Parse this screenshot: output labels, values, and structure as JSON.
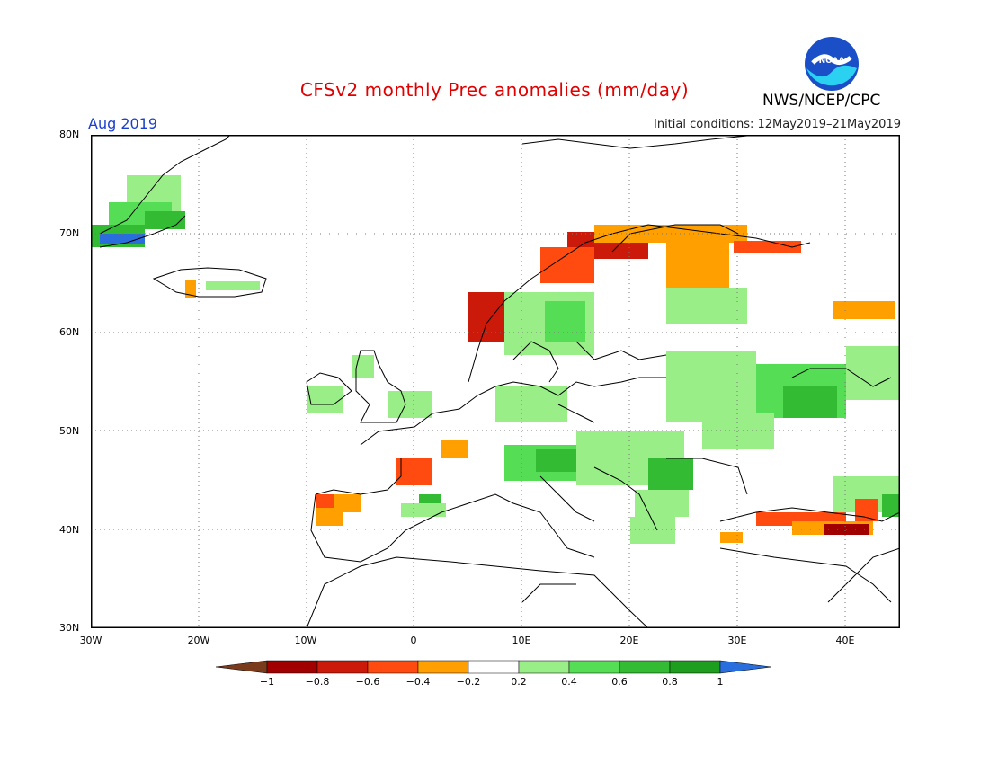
{
  "header": {
    "title": "CFSv2 monthly Prec anomalies (mm/day)",
    "month": "Aug 2019",
    "initial_conditions": "Initial conditions: 12May2019–21May2019",
    "agency": "NWS/NCEP/CPC",
    "logo_text": "NOAA"
  },
  "axes": {
    "lat_labels": [
      "80N",
      "70N",
      "60N",
      "50N",
      "40N",
      "30N"
    ],
    "lon_labels": [
      "30W",
      "20W",
      "10W",
      "0",
      "10E",
      "20E",
      "30E",
      "40E"
    ]
  },
  "colorbar": {
    "ticks": [
      "−1",
      "−0.8",
      "−0.6",
      "−0.4",
      "−0.2",
      "0.2",
      "0.4",
      "0.6",
      "0.8",
      "1"
    ],
    "colors": [
      "#7a3b1d",
      "#a00000",
      "#cc1a0a",
      "#ff4a10",
      "#ffa000",
      "#ffffff",
      "#99ee88",
      "#55dd55",
      "#33bb33",
      "#1e9e1e",
      "#2a6edd"
    ]
  },
  "colors": {
    "title": "#e00000",
    "month": "#1a3fd0",
    "land_outline": "#000000",
    "gridlines": "#777777"
  }
}
